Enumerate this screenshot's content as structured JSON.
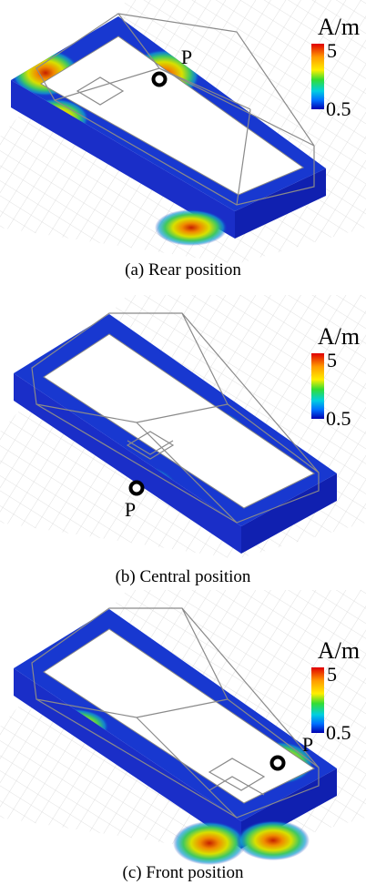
{
  "panels": [
    {
      "unit": "A/m",
      "scale_max": "5",
      "scale_min": "0.5",
      "marker": "P",
      "caption": "(a) Rear position"
    },
    {
      "unit": "A/m",
      "scale_max": "5",
      "scale_min": "0.5",
      "marker": "P",
      "caption": "(b) Central position"
    },
    {
      "unit": "A/m",
      "scale_max": "5",
      "scale_min": "0.5",
      "marker": "P",
      "caption": "(c) Front position"
    }
  ]
}
